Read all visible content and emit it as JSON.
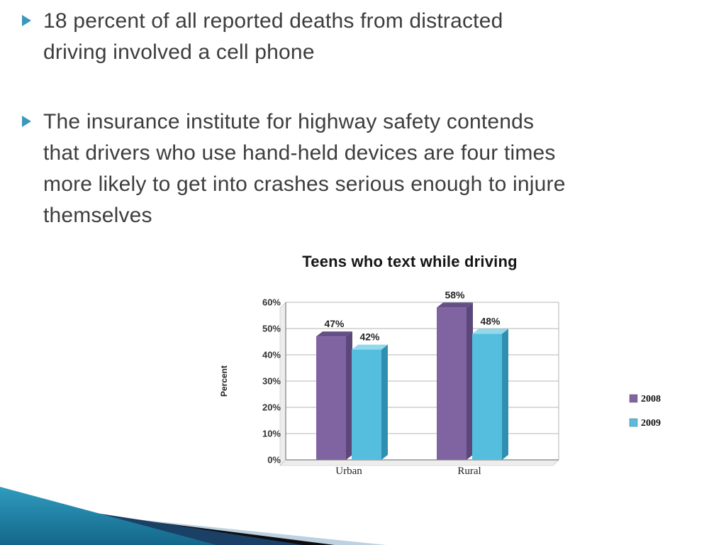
{
  "slide": {
    "background": "#ffffff",
    "text_color": "#3d3d3d",
    "bullet_marker_color": "#3b97bb",
    "bullets": [
      "18 percent of all reported deaths from distracted driving involved a cell phone",
      "The insurance institute for highway safety contends that drivers who use hand-held devices are four times more likely to get into crashes serious enough to injure themselves"
    ]
  },
  "chart_data": {
    "type": "bar",
    "style": "3d-clustered",
    "title": "Teens who text while driving",
    "categories": [
      "Urban",
      "Rural"
    ],
    "series": [
      {
        "name": "2008",
        "color": "#8064A2",
        "color_top": "#655086",
        "color_side": "#5B477A",
        "values": [
          47,
          58
        ]
      },
      {
        "name": "2009",
        "color": "#55BEDE",
        "color_top": "#93D9EC",
        "color_side": "#2F8FB0",
        "values": [
          42,
          48
        ]
      }
    ],
    "data_labels": [
      [
        "47%",
        "58%"
      ],
      [
        "42%",
        "48%"
      ]
    ],
    "xlabel": "",
    "ylabel": "Percent",
    "ylim": [
      0,
      60
    ],
    "ytick_step": 10,
    "ytick_labels": [
      "0%",
      "10%",
      "20%",
      "30%",
      "40%",
      "50%",
      "60%"
    ],
    "legend": {
      "position": "right",
      "entries": [
        "2008",
        "2009"
      ]
    },
    "grid": true
  },
  "decoration": {
    "teal": "#2f9cbe",
    "teal_dark": "#14678a",
    "navy": "#1b4066",
    "black": "#0d0d0f",
    "pale_blue": "#bdd1e0"
  }
}
